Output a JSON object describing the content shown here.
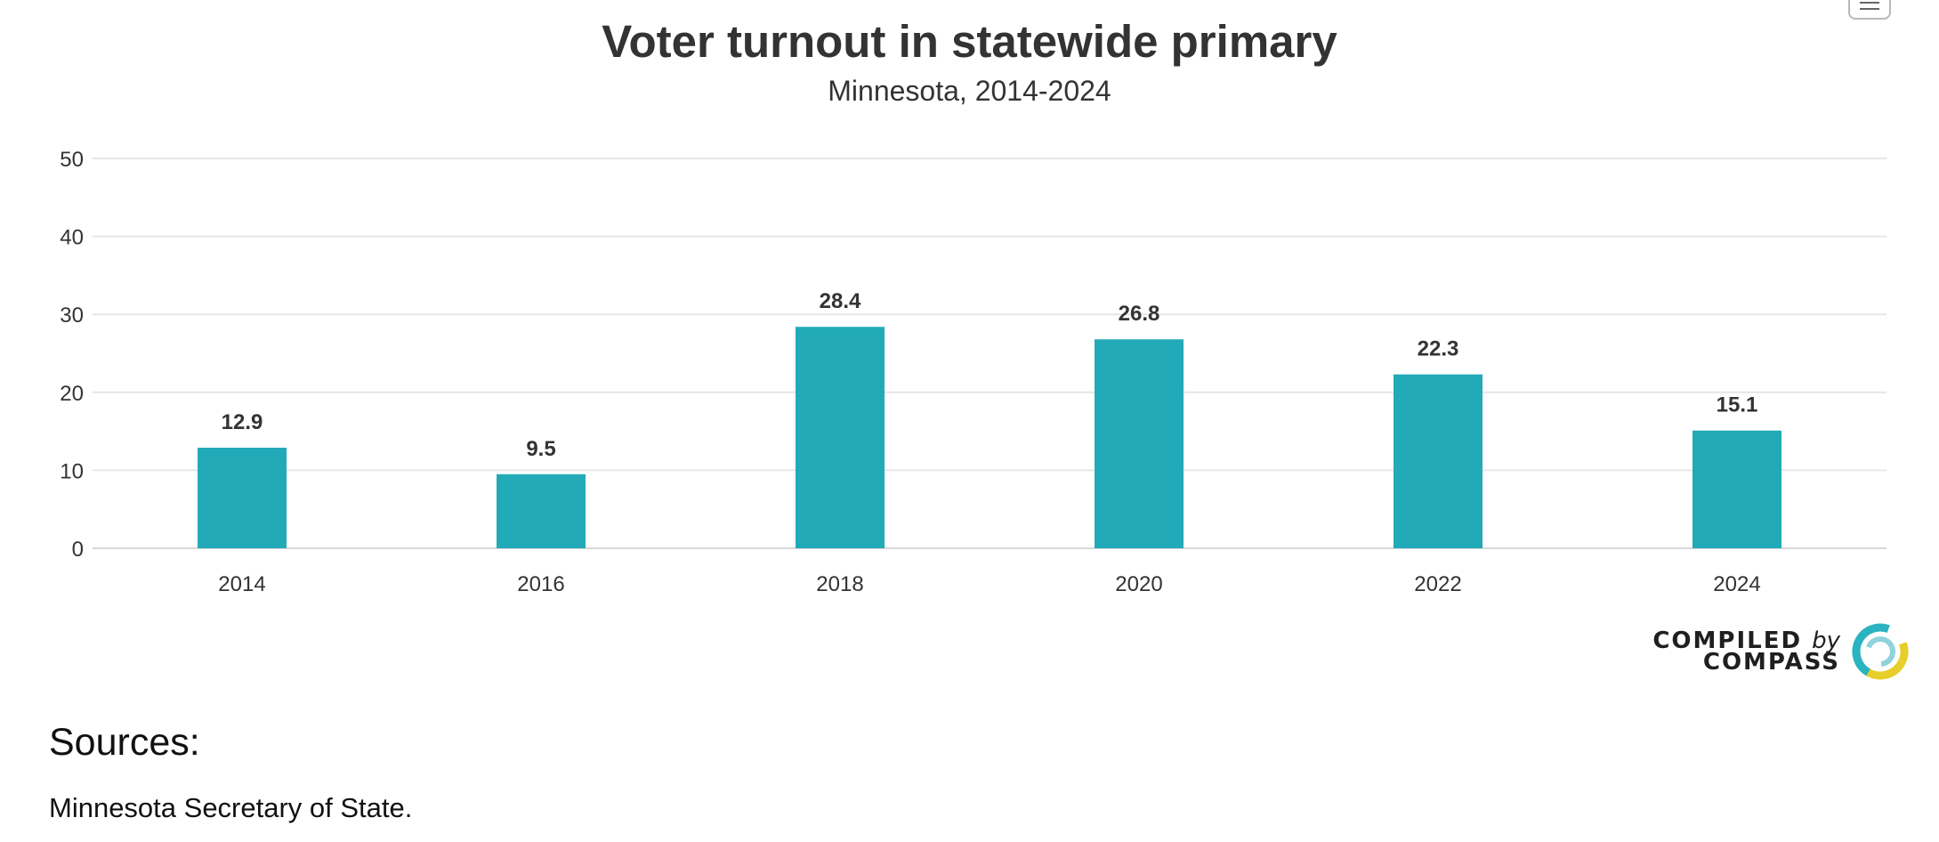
{
  "header": {
    "menu_icon": "hamburger-menu-icon"
  },
  "chart_data": {
    "type": "bar",
    "title": "Voter turnout in statewide primary",
    "subtitle": "Minnesota, 2014-2024",
    "categories": [
      "2014",
      "2016",
      "2018",
      "2020",
      "2022",
      "2024"
    ],
    "values": [
      12.9,
      9.5,
      28.4,
      26.8,
      22.3,
      15.1
    ],
    "value_labels": [
      "12.9",
      "9.5",
      "28.4",
      "26.8",
      "22.3",
      "15.1"
    ],
    "ylim": [
      0,
      50
    ],
    "yticks": [
      "0",
      "10",
      "20",
      "30",
      "40",
      "50"
    ],
    "xlabel": "",
    "ylabel": "",
    "grid": true,
    "legend": "none",
    "bar_color": "#22aab8"
  },
  "branding": {
    "logo_line1": "COMPILED",
    "logo_by": "by",
    "logo_line2": "COMPASS",
    "logo_icon": "compass-logo-icon"
  },
  "sources": {
    "heading": "Sources:",
    "text": "Minnesota Secretary of State."
  }
}
